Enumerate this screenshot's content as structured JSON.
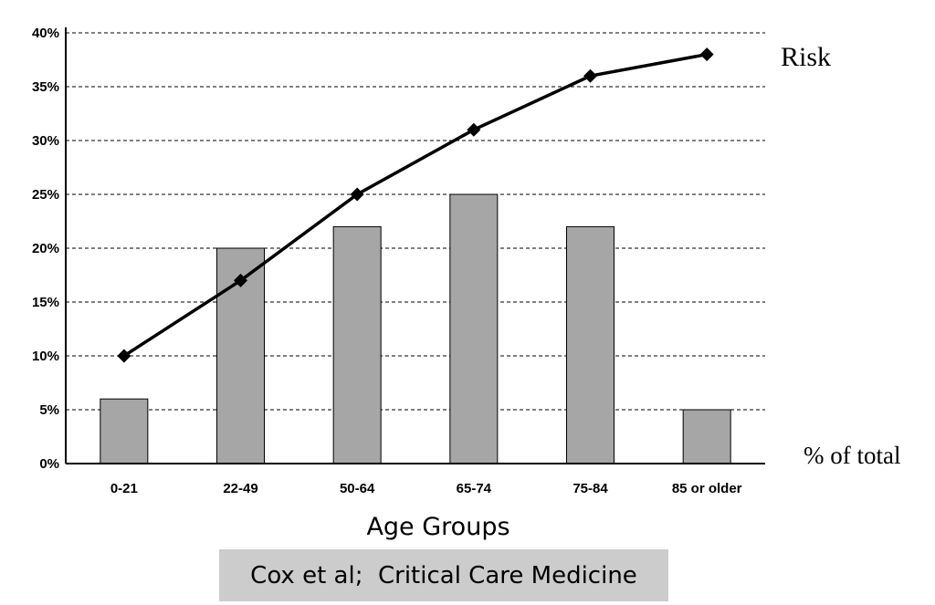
{
  "chart_data": {
    "type": "bar",
    "categories": [
      "0-21",
      "22-49",
      "50-64",
      "65-74",
      "75-84",
      "85 or older"
    ],
    "series": [
      {
        "name": "% of total",
        "type": "bar",
        "values": [
          6,
          20,
          22,
          25,
          22,
          5
        ],
        "color": "#a6a6a6"
      },
      {
        "name": "Risk",
        "type": "line",
        "values": [
          10,
          17,
          25,
          31,
          36,
          38
        ],
        "color": "#000000",
        "marker": "diamond"
      }
    ],
    "xlabel": "Age Groups",
    "ylabel": "",
    "ylim": [
      0,
      40
    ],
    "yticks": [
      "0%",
      "5%",
      "10%",
      "15%",
      "20%",
      "25%",
      "30%",
      "35%",
      "40%"
    ],
    "grid": "horizontal-dashed",
    "annotations": {
      "risk": "Risk",
      "bars": "% of total"
    }
  },
  "caption": "Cox et al;  Critical Care Medicine"
}
